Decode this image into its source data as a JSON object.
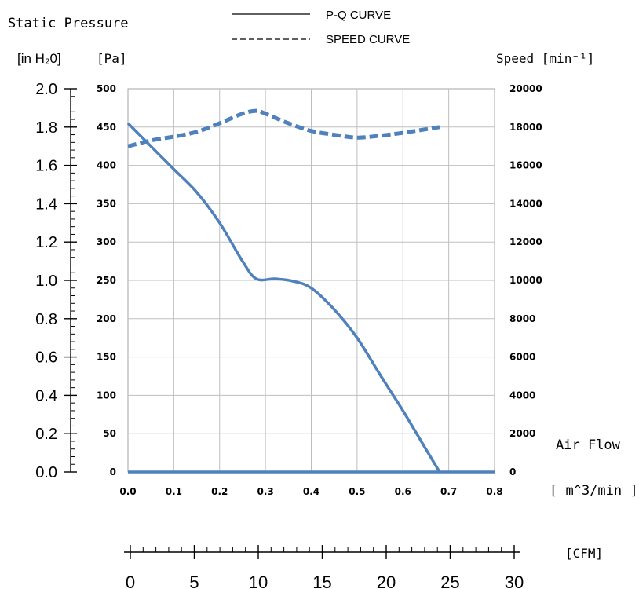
{
  "chart_data": {
    "type": "line",
    "title": "Static Pressure",
    "legend": [
      {
        "label": "P-Q CURVE",
        "style": "solid"
      },
      {
        "label": "SPEED CURVE",
        "style": "dashed"
      }
    ],
    "legend_placement": "top-center",
    "unit_inh2o": "[in H₂0]",
    "unit_pa": "[Pa]",
    "speed_label": "Speed [min⁻¹]",
    "xlabel": "Air Flow",
    "xunit": "[ m^3/min ]",
    "cfm_unit": "[CFM]",
    "xlim": [
      0,
      0.8
    ],
    "ylim_pa": [
      0,
      500
    ],
    "ylim_inh2o": [
      0,
      2.0
    ],
    "ylim_speed": [
      0,
      20000
    ],
    "cfm_range": [
      0,
      30
    ],
    "x_ticks": [
      "0.0",
      "0.1",
      "0.2",
      "0.3",
      "0.4",
      "0.5",
      "0.6",
      "0.7",
      "0.8"
    ],
    "pa_ticks": [
      "0",
      "50",
      "100",
      "150",
      "200",
      "250",
      "300",
      "350",
      "400",
      "450",
      "500"
    ],
    "inh2o_ticks": [
      "0.0",
      "0.2",
      "0.4",
      "0.6",
      "0.8",
      "1.0",
      "1.2",
      "1.4",
      "1.6",
      "1.8",
      "2.0"
    ],
    "speed_ticks": [
      "0",
      "2000",
      "4000",
      "6000",
      "8000",
      "10000",
      "12000",
      "14000",
      "16000",
      "18000",
      "20000"
    ],
    "cfm_ticks": [
      "0",
      "5",
      "10",
      "15",
      "20",
      "25",
      "30"
    ],
    "grid": true,
    "series": [
      {
        "name": "P-Q CURVE",
        "axis": "Pa",
        "color": "#4f81bd",
        "style": "solid",
        "x": [
          0.0,
          0.05,
          0.1,
          0.15,
          0.2,
          0.25,
          0.28,
          0.32,
          0.36,
          0.4,
          0.45,
          0.5,
          0.55,
          0.6,
          0.65,
          0.68
        ],
        "y": [
          455,
          425,
          395,
          365,
          325,
          275,
          252,
          252,
          249,
          240,
          212,
          175,
          127,
          80,
          30,
          0
        ]
      },
      {
        "name": "SPEED CURVE",
        "axis": "speed",
        "color": "#4f81bd",
        "style": "dashed",
        "x": [
          0.0,
          0.05,
          0.1,
          0.15,
          0.2,
          0.25,
          0.28,
          0.3,
          0.35,
          0.4,
          0.45,
          0.5,
          0.55,
          0.6,
          0.68
        ],
        "y": [
          17000,
          17300,
          17500,
          17750,
          18200,
          18700,
          18850,
          18700,
          18200,
          17800,
          17600,
          17450,
          17550,
          17700,
          18000
        ]
      },
      {
        "name": "Air Flow baseline",
        "axis": "Pa",
        "color": "#4f81bd",
        "style": "solid",
        "x": [
          0.0,
          0.8
        ],
        "y": [
          0,
          0
        ]
      }
    ]
  }
}
